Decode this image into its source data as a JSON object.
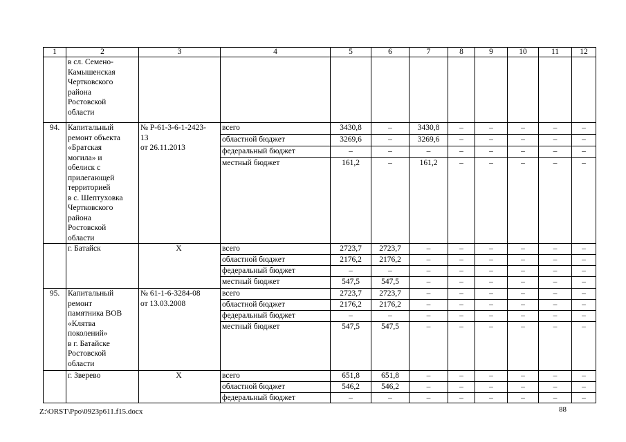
{
  "page": {
    "footer_path": "Z:\\ORST\\Ppo\\0923p611.f15.docx",
    "page_number": "88"
  },
  "table": {
    "header": [
      "1",
      "2",
      "3",
      "4",
      "5",
      "6",
      "7",
      "8",
      "9",
      "10",
      "11",
      "12"
    ],
    "groups": [
      {
        "num": "",
        "object": "в сл. Семено-\nКамышенская\nЧертковского\nрайона\nРостовской\nобласти",
        "doc": "",
        "doc_center": false,
        "rows": [
          {
            "label": "",
            "values": [
              "",
              "",
              "",
              "",
              "",
              "",
              "",
              ""
            ]
          }
        ]
      },
      {
        "num": "94.",
        "object": "Капитальный\nремонт объекта\n«Братская\nмогила» и\nобелиск с\nприлегающей\nтерриторией\nв с. Шептуховка\nЧертковского\nрайона\nРостовской\nобласти",
        "doc": "№ Р-61-3-6-1-2423-\n13\nот 26.11.2013",
        "doc_center": false,
        "rows": [
          {
            "label": "всего",
            "values": [
              "3430,8",
              "–",
              "3430,8",
              "–",
              "–",
              "–",
              "–",
              "–"
            ]
          },
          {
            "label": "областной бюджет",
            "values": [
              "3269,6",
              "–",
              "3269,6",
              "–",
              "–",
              "–",
              "–",
              "–"
            ]
          },
          {
            "label": "федеральный бюджет",
            "values": [
              "–",
              "–",
              "–",
              "–",
              "–",
              "–",
              "–",
              "–"
            ]
          },
          {
            "label": "местный бюджет",
            "values": [
              "161,2",
              "–",
              "161,2",
              "–",
              "–",
              "–",
              "–",
              "–"
            ]
          }
        ]
      },
      {
        "num": "",
        "object": "г. Батайск",
        "doc": "Х",
        "doc_center": true,
        "rows": [
          {
            "label": "всего",
            "values": [
              "2723,7",
              "2723,7",
              "–",
              "–",
              "–",
              "–",
              "–",
              "–"
            ]
          },
          {
            "label": "областной бюджет",
            "values": [
              "2176,2",
              "2176,2",
              "–",
              "–",
              "–",
              "–",
              "–",
              "–"
            ]
          },
          {
            "label": "федеральный бюджет",
            "values": [
              "–",
              "–",
              "–",
              "–",
              "–",
              "–",
              "–",
              "–"
            ]
          },
          {
            "label": "местный бюджет",
            "values": [
              "547,5",
              "547,5",
              "–",
              "–",
              "–",
              "–",
              "–",
              "–"
            ]
          }
        ]
      },
      {
        "num": "95.",
        "object": "Капитальный\nремонт\nпамятника ВОВ\n«Клятва\nпоколений»\nв г. Батайске\nРостовской\nобласти",
        "doc": "№ 61-1-6-3284-08\nот 13.03.2008",
        "doc_center": false,
        "rows": [
          {
            "label": "всего",
            "values": [
              "2723,7",
              "2723,7",
              "–",
              "–",
              "–",
              "–",
              "–",
              "–"
            ]
          },
          {
            "label": "областной бюджет",
            "values": [
              "2176,2",
              "2176,2",
              "–",
              "–",
              "–",
              "–",
              "–",
              "–"
            ]
          },
          {
            "label": "федеральный бюджет",
            "values": [
              "–",
              "–",
              "–",
              "–",
              "–",
              "–",
              "–",
              "–"
            ]
          },
          {
            "label": "местный бюджет",
            "values": [
              "547,5",
              "547,5",
              "–",
              "–",
              "–",
              "–",
              "–",
              "–"
            ]
          }
        ]
      },
      {
        "num": "",
        "object": "г. Зверево",
        "doc": "Х",
        "doc_center": true,
        "rows": [
          {
            "label": "всего",
            "values": [
              "651,8",
              "651,8",
              "–",
              "–",
              "–",
              "–",
              "–",
              "–"
            ]
          },
          {
            "label": "областной бюджет",
            "values": [
              "546,2",
              "546,2",
              "–",
              "–",
              "–",
              "–",
              "–",
              "–"
            ]
          },
          {
            "label": "федеральный бюджет",
            "values": [
              "–",
              "–",
              "–",
              "–",
              "–",
              "–",
              "–",
              "–"
            ]
          }
        ]
      }
    ]
  }
}
